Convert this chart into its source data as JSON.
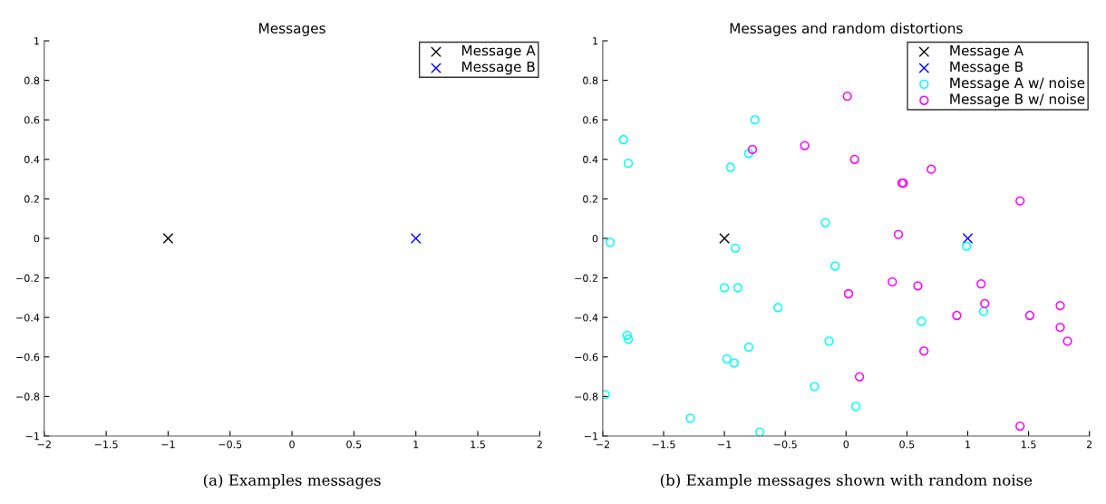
{
  "chart_data": [
    {
      "type": "scatter",
      "title": "Messages",
      "xlim": [
        -2,
        2
      ],
      "ylim": [
        -1,
        1
      ],
      "xticks": [
        -2,
        -1.5,
        -1,
        -0.5,
        0,
        0.5,
        1,
        1.5,
        2
      ],
      "yticks": [
        -1,
        -0.8,
        -0.6,
        -0.4,
        -0.2,
        0,
        0.2,
        0.4,
        0.6,
        0.8,
        1
      ],
      "grid": false,
      "legend": "top right",
      "annotations": [
        "(a) Examples messages"
      ],
      "series": [
        {
          "name": "Message A",
          "color": "#000000",
          "marker": "cross",
          "x": [
            -1
          ],
          "values": [
            0
          ]
        },
        {
          "name": "Message B",
          "color": "#0000ff",
          "marker": "cross",
          "x": [
            1
          ],
          "values": [
            0
          ]
        }
      ]
    },
    {
      "type": "scatter",
      "title": "Messages and random distortions",
      "xlim": [
        -2,
        2
      ],
      "ylim": [
        -1,
        1
      ],
      "xticks": [
        -2,
        -1.5,
        -1,
        -0.5,
        0,
        0.5,
        1,
        1.5,
        2
      ],
      "yticks": [
        -1,
        -0.8,
        -0.6,
        -0.4,
        -0.2,
        0,
        0.2,
        0.4,
        0.6,
        0.8,
        1
      ],
      "grid": false,
      "legend": "top right",
      "annotations": [
        "(b) Example messages shown with random noise"
      ],
      "series": [
        {
          "name": "Message A",
          "color": "#000000",
          "marker": "cross",
          "x": [
            -1
          ],
          "values": [
            0
          ]
        },
        {
          "name": "Message B",
          "color": "#0000ff",
          "marker": "cross",
          "x": [
            1
          ],
          "values": [
            0
          ]
        },
        {
          "name": "Message A w/ noise",
          "color": "#00ffff",
          "marker": "circle",
          "x": [
            -1.94,
            -1.83,
            -1.79,
            -1.8,
            -1.79,
            -1.98,
            -1.28,
            -0.95,
            -0.8,
            -0.75,
            -0.91,
            -1.0,
            -0.89,
            -0.56,
            -0.8,
            -0.98,
            -0.92,
            -0.71,
            -0.17,
            -0.09,
            -0.14,
            -0.26,
            0.08,
            0.62,
            0.99,
            1.13
          ],
          "values": [
            -0.02,
            0.5,
            0.38,
            -0.49,
            -0.51,
            -0.79,
            -0.91,
            0.36,
            0.43,
            0.6,
            -0.05,
            -0.25,
            -0.25,
            -0.35,
            -0.55,
            -0.61,
            -0.63,
            -0.98,
            0.08,
            -0.14,
            -0.52,
            -0.75,
            -0.85,
            -0.42,
            -0.04,
            -0.37
          ]
        },
        {
          "name": "Message B w/ noise",
          "color": "#ff00ff",
          "marker": "circle",
          "x": [
            -0.77,
            -0.34,
            0.01,
            0.07,
            0.46,
            0.47,
            0.7,
            1.43,
            0.43,
            0.02,
            0.38,
            0.59,
            1.11,
            1.14,
            0.91,
            1.51,
            1.76,
            1.76,
            1.82,
            0.64,
            0.11,
            1.43
          ],
          "values": [
            0.45,
            0.47,
            0.72,
            0.4,
            0.28,
            0.28,
            0.35,
            0.19,
            0.02,
            -0.28,
            -0.22,
            -0.24,
            -0.23,
            -0.33,
            -0.39,
            -0.39,
            -0.34,
            -0.45,
            -0.52,
            -0.57,
            -0.7,
            -0.95
          ]
        }
      ]
    }
  ]
}
